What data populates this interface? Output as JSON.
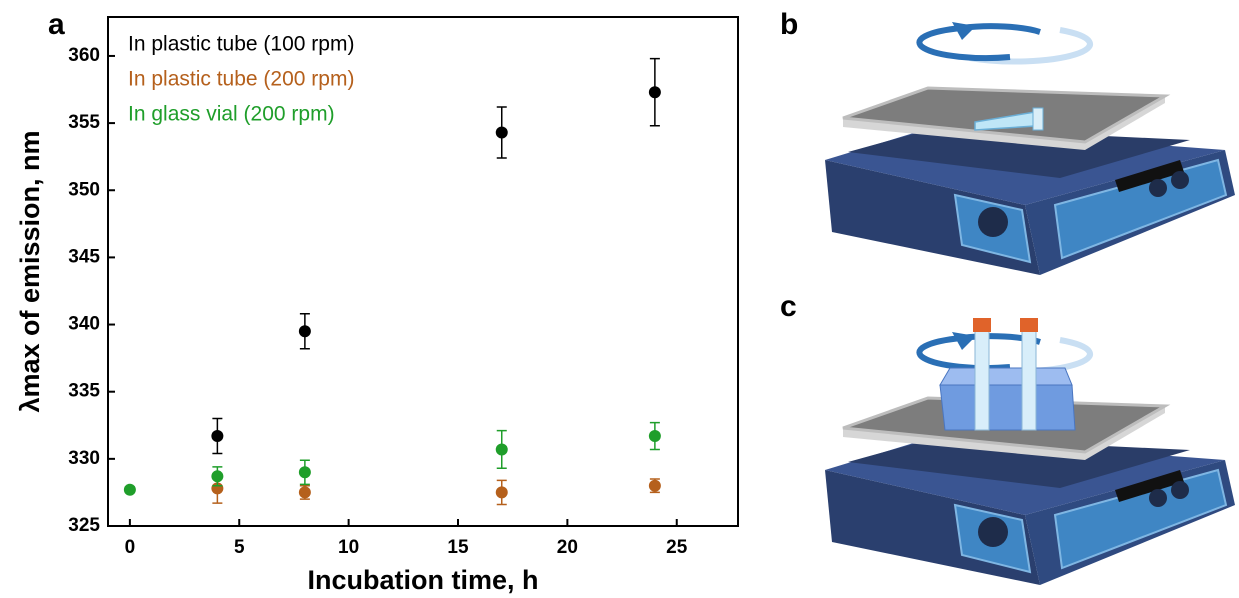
{
  "chart_data": {
    "type": "scatter",
    "panel_label": "a",
    "xlabel": "Incubation time, h",
    "ylabel": "λmax of emission, nm",
    "xlim": [
      -1,
      27.8
    ],
    "ylim": [
      325,
      362.9
    ],
    "xticks": [
      0,
      5,
      10,
      15,
      20,
      25
    ],
    "yticks": [
      325,
      330,
      335,
      340,
      345,
      350,
      355,
      360
    ],
    "legend": "upper left",
    "series": [
      {
        "name": "In plastic tube (100 rpm)",
        "color": "#000000",
        "x": [
          4,
          8,
          17,
          24
        ],
        "values": [
          331.7,
          339.5,
          354.3,
          357.3
        ],
        "errors": [
          1.3,
          1.3,
          1.9,
          2.5
        ]
      },
      {
        "name": "In plastic tube (200 rpm)",
        "color": "#b5601c",
        "x": [
          4,
          8,
          17,
          24
        ],
        "values": [
          327.8,
          327.5,
          327.5,
          328.0
        ],
        "errors": [
          1.1,
          0.5,
          0.9,
          0.5
        ]
      },
      {
        "name": "In glass vial (200 rpm)",
        "color": "#1f9e2a",
        "x": [
          0,
          4,
          8,
          17,
          24
        ],
        "values": [
          327.7,
          328.7,
          329.0,
          330.7,
          331.7
        ],
        "errors": [
          0.2,
          0.7,
          0.9,
          1.4,
          1.0
        ]
      }
    ]
  },
  "panels": [
    {
      "label": "b"
    },
    {
      "label": "c"
    }
  ]
}
